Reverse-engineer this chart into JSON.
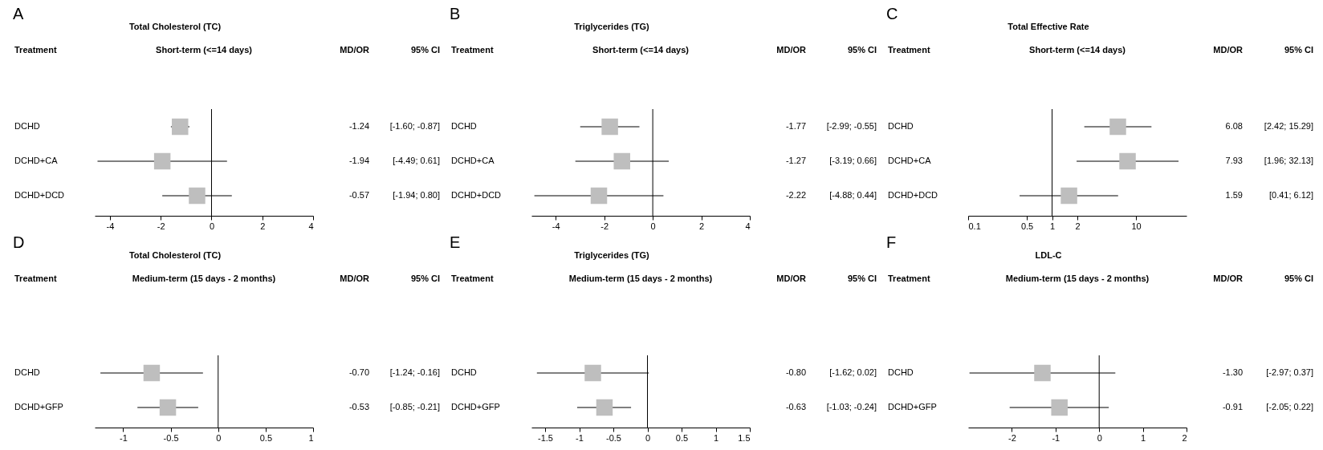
{
  "chart_data": [
    {
      "type": "scatter",
      "orientation": "horizontal",
      "title": "Total Cholesterol (TC)",
      "subtitle": "Short-term (<=14 days)",
      "ylabel": "Treatment",
      "categories": [
        "DCHD",
        "DCHD+CA",
        "DCHD+DCD"
      ],
      "marker": "square",
      "series": [
        {
          "color": "#bebebe",
          "values": [
            -1.24,
            -1.94,
            -0.57
          ],
          "errors": [
            [
              -1.6,
              -0.87
            ],
            [
              -4.49,
              0.61
            ],
            [
              -1.94,
              0.8
            ]
          ],
          "value_labels": [
            "-1.24",
            "-1.94",
            "-0.57"
          ]
        }
      ],
      "xlim": [
        -4.6,
        4
      ],
      "xticks": [
        -4,
        -2,
        0,
        2,
        4
      ],
      "ref_lines": [
        {
          "axis": "x",
          "value": 0
        }
      ],
      "annotations": [
        "A",
        "MD/OR",
        "95% CI",
        "[-1.60; -0.87]",
        "[-4.49;  0.61]",
        "[-1.94;  0.80]"
      ]
    },
    {
      "type": "scatter",
      "orientation": "horizontal",
      "title": "Triglycerides (TG)",
      "subtitle": "Short-term (<=14 days)",
      "ylabel": "Treatment",
      "categories": [
        "DCHD",
        "DCHD+CA",
        "DCHD+DCD"
      ],
      "marker": "square",
      "series": [
        {
          "color": "#bebebe",
          "values": [
            -1.77,
            -1.27,
            -2.22
          ],
          "errors": [
            [
              -2.99,
              -0.55
            ],
            [
              -3.19,
              0.66
            ],
            [
              -4.88,
              0.44
            ]
          ],
          "value_labels": [
            "-1.77",
            "-1.27",
            "-2.22"
          ]
        }
      ],
      "xlim": [
        -5,
        4
      ],
      "xticks": [
        -4,
        -2,
        0,
        2,
        4
      ],
      "ref_lines": [
        {
          "axis": "x",
          "value": 0
        }
      ],
      "annotations": [
        "B",
        "MD/OR",
        "95% CI",
        "[-2.99; -0.55]",
        "[-3.19;  0.66]",
        "[-4.88;  0.44]"
      ]
    },
    {
      "type": "scatter",
      "orientation": "horizontal",
      "title": "Total Effective Rate",
      "subtitle": "Short-term (<=14 days)",
      "ylabel": "Treatment",
      "categories": [
        "DCHD",
        "DCHD+CA",
        "DCHD+DCD"
      ],
      "marker": "square",
      "log": "x",
      "series": [
        {
          "color": "#bebebe",
          "values": [
            6.08,
            7.93,
            1.59
          ],
          "errors": [
            [
              2.42,
              15.29
            ],
            [
              1.96,
              32.13
            ],
            [
              0.41,
              6.12
            ]
          ],
          "value_labels": [
            "6.08",
            "7.93",
            "1.59"
          ]
        }
      ],
      "xlim": [
        0.1,
        40
      ],
      "xticks": [
        0.1,
        0.5,
        1,
        2,
        10
      ],
      "ref_lines": [
        {
          "axis": "x",
          "value": 1
        }
      ],
      "annotations": [
        "C",
        "MD/OR",
        "95% CI",
        "[2.42; 15.29]",
        "[1.96; 32.13]",
        "[0.41;  6.12]"
      ]
    },
    {
      "type": "scatter",
      "orientation": "horizontal",
      "title": "Total Cholesterol (TC)",
      "subtitle": "Medium-term (15 days - 2 months)",
      "ylabel": "Treatment",
      "categories": [
        "DCHD",
        "DCHD+GFP"
      ],
      "marker": "square",
      "series": [
        {
          "color": "#bebebe",
          "values": [
            -0.7,
            -0.53
          ],
          "errors": [
            [
              -1.24,
              -0.16
            ],
            [
              -0.85,
              -0.21
            ]
          ],
          "value_labels": [
            "-0.70",
            "-0.53"
          ]
        }
      ],
      "xlim": [
        -1.3,
        1
      ],
      "xticks": [
        -1,
        -0.5,
        0,
        0.5,
        1
      ],
      "ref_lines": [
        {
          "axis": "x",
          "value": 0
        }
      ],
      "annotations": [
        "D",
        "MD/OR",
        "95% CI",
        "[-1.24; -0.16]",
        "[-0.85; -0.21]"
      ]
    },
    {
      "type": "scatter",
      "orientation": "horizontal",
      "title": "Triglycerides (TG)",
      "subtitle": "Medium-term (15 days - 2 months)",
      "ylabel": "Treatment",
      "categories": [
        "DCHD",
        "DCHD+GFP"
      ],
      "marker": "square",
      "series": [
        {
          "color": "#bebebe",
          "values": [
            -0.8,
            -0.63
          ],
          "errors": [
            [
              -1.62,
              0.02
            ],
            [
              -1.03,
              -0.24
            ]
          ],
          "value_labels": [
            "-0.80",
            "-0.63"
          ]
        }
      ],
      "xlim": [
        -1.7,
        1.5
      ],
      "xticks": [
        -1.5,
        -1,
        -0.5,
        0,
        0.5,
        1,
        1.5
      ],
      "ref_lines": [
        {
          "axis": "x",
          "value": 0
        }
      ],
      "annotations": [
        "E",
        "MD/OR",
        "95% CI",
        "[-1.62;  0.02]",
        "[-1.03; -0.24]"
      ]
    },
    {
      "type": "scatter",
      "orientation": "horizontal",
      "title": "LDL-C",
      "subtitle": "Medium-term (15 days - 2 months)",
      "ylabel": "Treatment",
      "categories": [
        "DCHD",
        "DCHD+GFP"
      ],
      "marker": "square",
      "series": [
        {
          "color": "#bebebe",
          "values": [
            -1.3,
            -0.91
          ],
          "errors": [
            [
              -2.97,
              0.37
            ],
            [
              -2.05,
              0.22
            ]
          ],
          "value_labels": [
            "-1.30",
            "-0.91"
          ]
        }
      ],
      "xlim": [
        -3,
        2
      ],
      "xticks": [
        -2,
        -1,
        0,
        1,
        2
      ],
      "ref_lines": [
        {
          "axis": "x",
          "value": 0
        }
      ],
      "annotations": [
        "F",
        "MD/OR",
        "95% CI",
        "[-2.97;  0.37]",
        "[-2.05;  0.22]"
      ]
    }
  ]
}
